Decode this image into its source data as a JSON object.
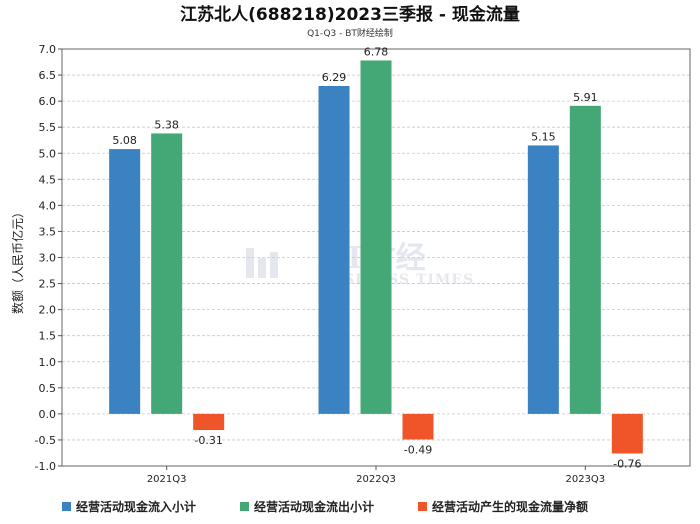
{
  "chart_data": {
    "type": "bar",
    "title": "江苏北人(688218)2023三季报 - 现金流量",
    "subtitle": "Q1-Q3 - BT财经绘制",
    "ylabel": "数额（人民币亿元）",
    "xlabel": "",
    "categories": [
      "2021Q3",
      "2022Q3",
      "2023Q3"
    ],
    "series": [
      {
        "name": "经营活动现金流入小计",
        "color": "#3a82c2",
        "values": [
          5.08,
          6.29,
          5.15
        ]
      },
      {
        "name": "经营活动现金流出小计",
        "color": "#44a876",
        "values": [
          5.38,
          6.78,
          5.91
        ]
      },
      {
        "name": "经营活动产生的现金流量净额",
        "color": "#f0552a",
        "values": [
          -0.31,
          -0.49,
          -0.76
        ]
      }
    ],
    "ylim": [
      -1.0,
      7.0
    ],
    "yticks": [
      "-1.0",
      "-0.5",
      "0.0",
      "0.5",
      "1.0",
      "1.5",
      "2.0",
      "2.5",
      "3.0",
      "3.5",
      "4.0",
      "4.5",
      "5.0",
      "5.5",
      "6.0",
      "6.5",
      "7.0"
    ],
    "grid": true,
    "legend_position": "bottom"
  },
  "watermark": {
    "main": "BT财经",
    "sub": "BUSINESS TIMES"
  }
}
